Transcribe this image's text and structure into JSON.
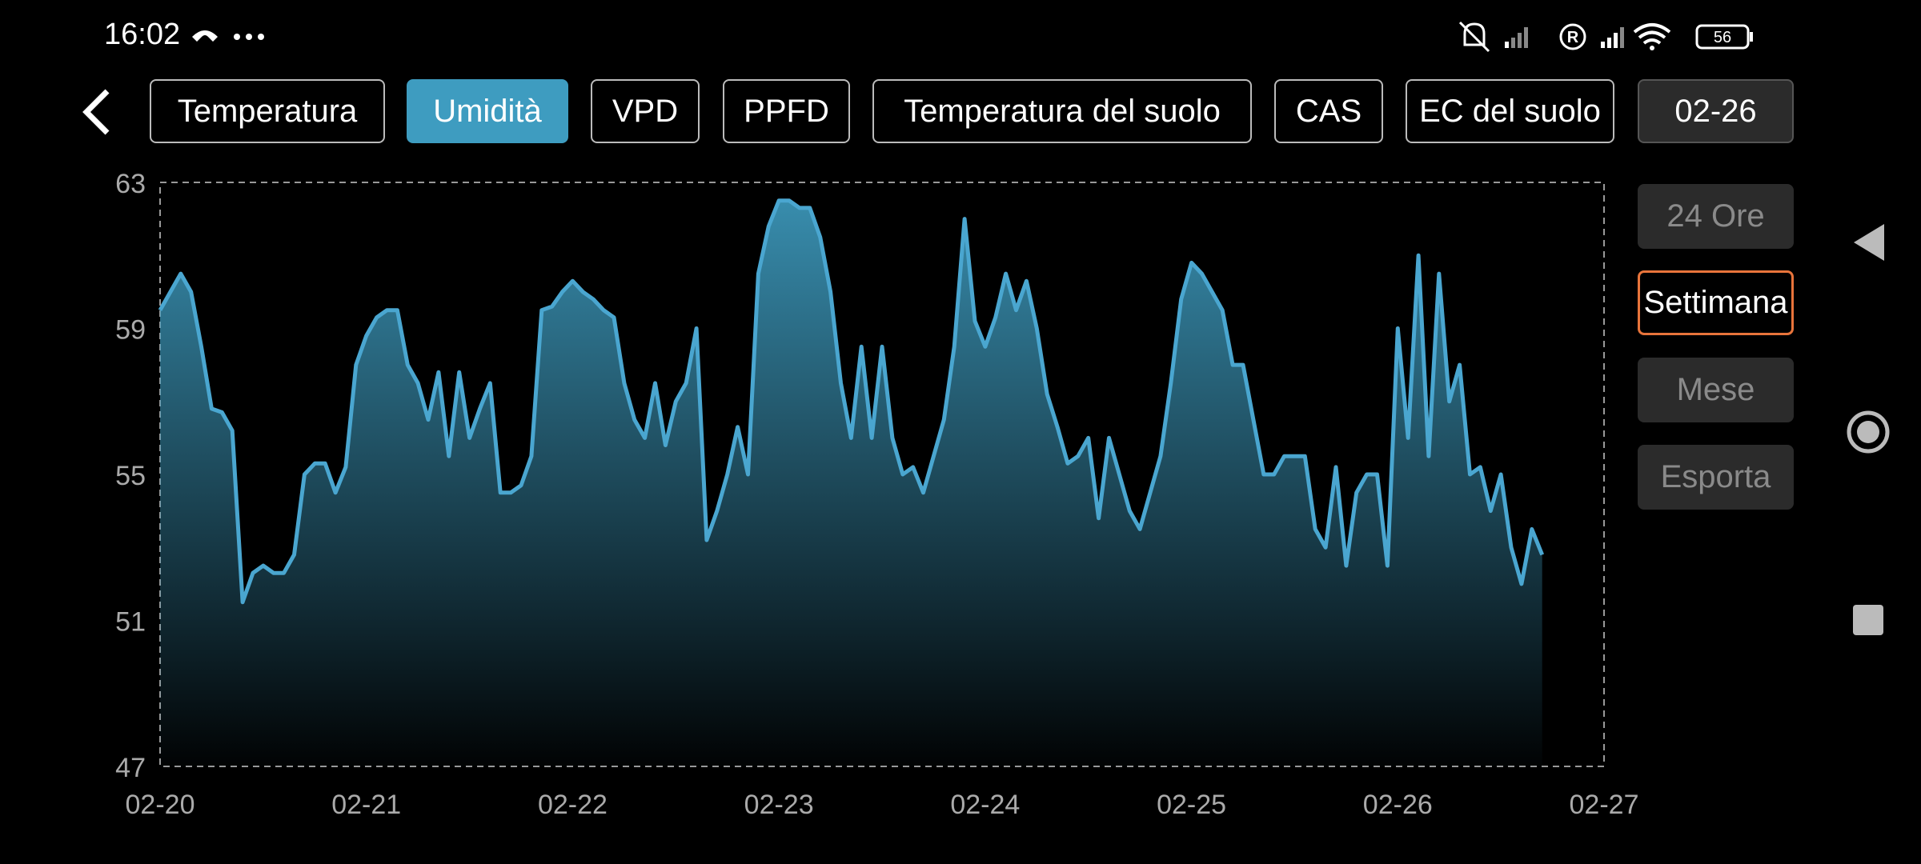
{
  "status_bar": {
    "time": "16:02",
    "battery": "56"
  },
  "tabs": [
    {
      "label": "Temperatura",
      "selected": false
    },
    {
      "label": "Umidità",
      "selected": true
    },
    {
      "label": "VPD",
      "selected": false
    },
    {
      "label": "PPFD",
      "selected": false
    },
    {
      "label": "Temperatura del suolo",
      "selected": false
    },
    {
      "label": "CAS",
      "selected": false
    },
    {
      "label": "EC del suolo",
      "selected": false
    }
  ],
  "date_button": "02-26",
  "range_buttons": [
    {
      "label": "24 Ore",
      "selected": false
    },
    {
      "label": "Settimana",
      "selected": true
    },
    {
      "label": "Mese",
      "selected": false
    },
    {
      "label": "Esporta",
      "selected": false
    }
  ],
  "chart_data": {
    "type": "area",
    "color": "#4aa6d0",
    "x": [
      0,
      0.05,
      0.1,
      0.15,
      0.2,
      0.25,
      0.3,
      0.35,
      0.4,
      0.45,
      0.5,
      0.55,
      0.6,
      0.65,
      0.7,
      0.75,
      0.8,
      0.85,
      0.9,
      0.95,
      1,
      1.05,
      1.1,
      1.15,
      1.2,
      1.25,
      1.3,
      1.35,
      1.4,
      1.45,
      1.5,
      1.55,
      1.6,
      1.65,
      1.7,
      1.75,
      1.8,
      1.85,
      1.9,
      1.95,
      2,
      2.05,
      2.1,
      2.15,
      2.2,
      2.25,
      2.3,
      2.35,
      2.4,
      2.45,
      2.5,
      2.55,
      2.6,
      2.65,
      2.7,
      2.75,
      2.8,
      2.85,
      2.9,
      2.95,
      3,
      3.05,
      3.1,
      3.15,
      3.2,
      3.25,
      3.3,
      3.35,
      3.4,
      3.45,
      3.5,
      3.55,
      3.6,
      3.65,
      3.7,
      3.75,
      3.8,
      3.85,
      3.9,
      3.95,
      4,
      4.05,
      4.1,
      4.15,
      4.2,
      4.25,
      4.3,
      4.35,
      4.4,
      4.45,
      4.5,
      4.55,
      4.6,
      4.65,
      4.7,
      4.75,
      4.8,
      4.85,
      4.9,
      4.95,
      5,
      5.05,
      5.1,
      5.15,
      5.2,
      5.25,
      5.3,
      5.35,
      5.4,
      5.45,
      5.5,
      5.55,
      5.6,
      5.65,
      5.7,
      5.75,
      5.8,
      5.85,
      5.9,
      5.95,
      6,
      6.05,
      6.1,
      6.15,
      6.2,
      6.25,
      6.3,
      6.35,
      6.4,
      6.45,
      6.5,
      6.55,
      6.6,
      6.65,
      6.7
    ],
    "values": [
      59.5,
      60,
      60.5,
      60,
      58.5,
      56.8,
      56.7,
      56.2,
      51.5,
      52.3,
      52.5,
      52.3,
      52.3,
      52.8,
      55,
      55.3,
      55.3,
      54.5,
      55.2,
      58,
      58.8,
      59.3,
      59.5,
      59.5,
      58,
      57.5,
      56.5,
      57.8,
      55.5,
      57.8,
      56,
      56.8,
      57.5,
      54.5,
      54.5,
      54.7,
      55.5,
      59.5,
      59.6,
      60,
      60.3,
      60,
      59.8,
      59.5,
      59.3,
      57.5,
      56.5,
      56,
      57.5,
      55.8,
      57,
      57.5,
      59,
      53.2,
      54,
      55,
      56.3,
      55,
      60.5,
      61.8,
      62.5,
      62.5,
      62.3,
      62.3,
      61.5,
      60,
      57.5,
      56,
      58.5,
      56,
      58.5,
      56,
      55,
      55.2,
      54.5,
      55.5,
      56.5,
      58.5,
      62,
      59.2,
      58.5,
      59.3,
      60.5,
      59.5,
      60.3,
      59,
      57.2,
      56.3,
      55.3,
      55.5,
      56,
      53.8,
      56,
      55,
      54,
      53.5,
      54.5,
      55.5,
      57.5,
      59.8,
      60.8,
      60.5,
      60,
      59.5,
      58,
      58,
      56.5,
      55,
      55,
      55.5,
      55.5,
      55.5,
      53.5,
      53,
      55.2,
      52.5,
      54.5,
      55,
      55,
      52.5,
      59,
      56,
      61,
      55.5,
      60.5,
      57,
      58,
      55,
      55.2,
      54,
      55,
      53,
      52,
      53.5,
      52.8
    ],
    "xlim": [
      0,
      7
    ],
    "xticks": [
      {
        "value": 0,
        "label": "02-20"
      },
      {
        "value": 1,
        "label": "02-21"
      },
      {
        "value": 2,
        "label": "02-22"
      },
      {
        "value": 3,
        "label": "02-23"
      },
      {
        "value": 4,
        "label": "02-24"
      },
      {
        "value": 5,
        "label": "02-25"
      },
      {
        "value": 6,
        "label": "02-26"
      },
      {
        "value": 7,
        "label": "02-27"
      }
    ],
    "ylim": [
      47,
      63
    ],
    "yticks": [
      47,
      51,
      55,
      59,
      63
    ]
  }
}
